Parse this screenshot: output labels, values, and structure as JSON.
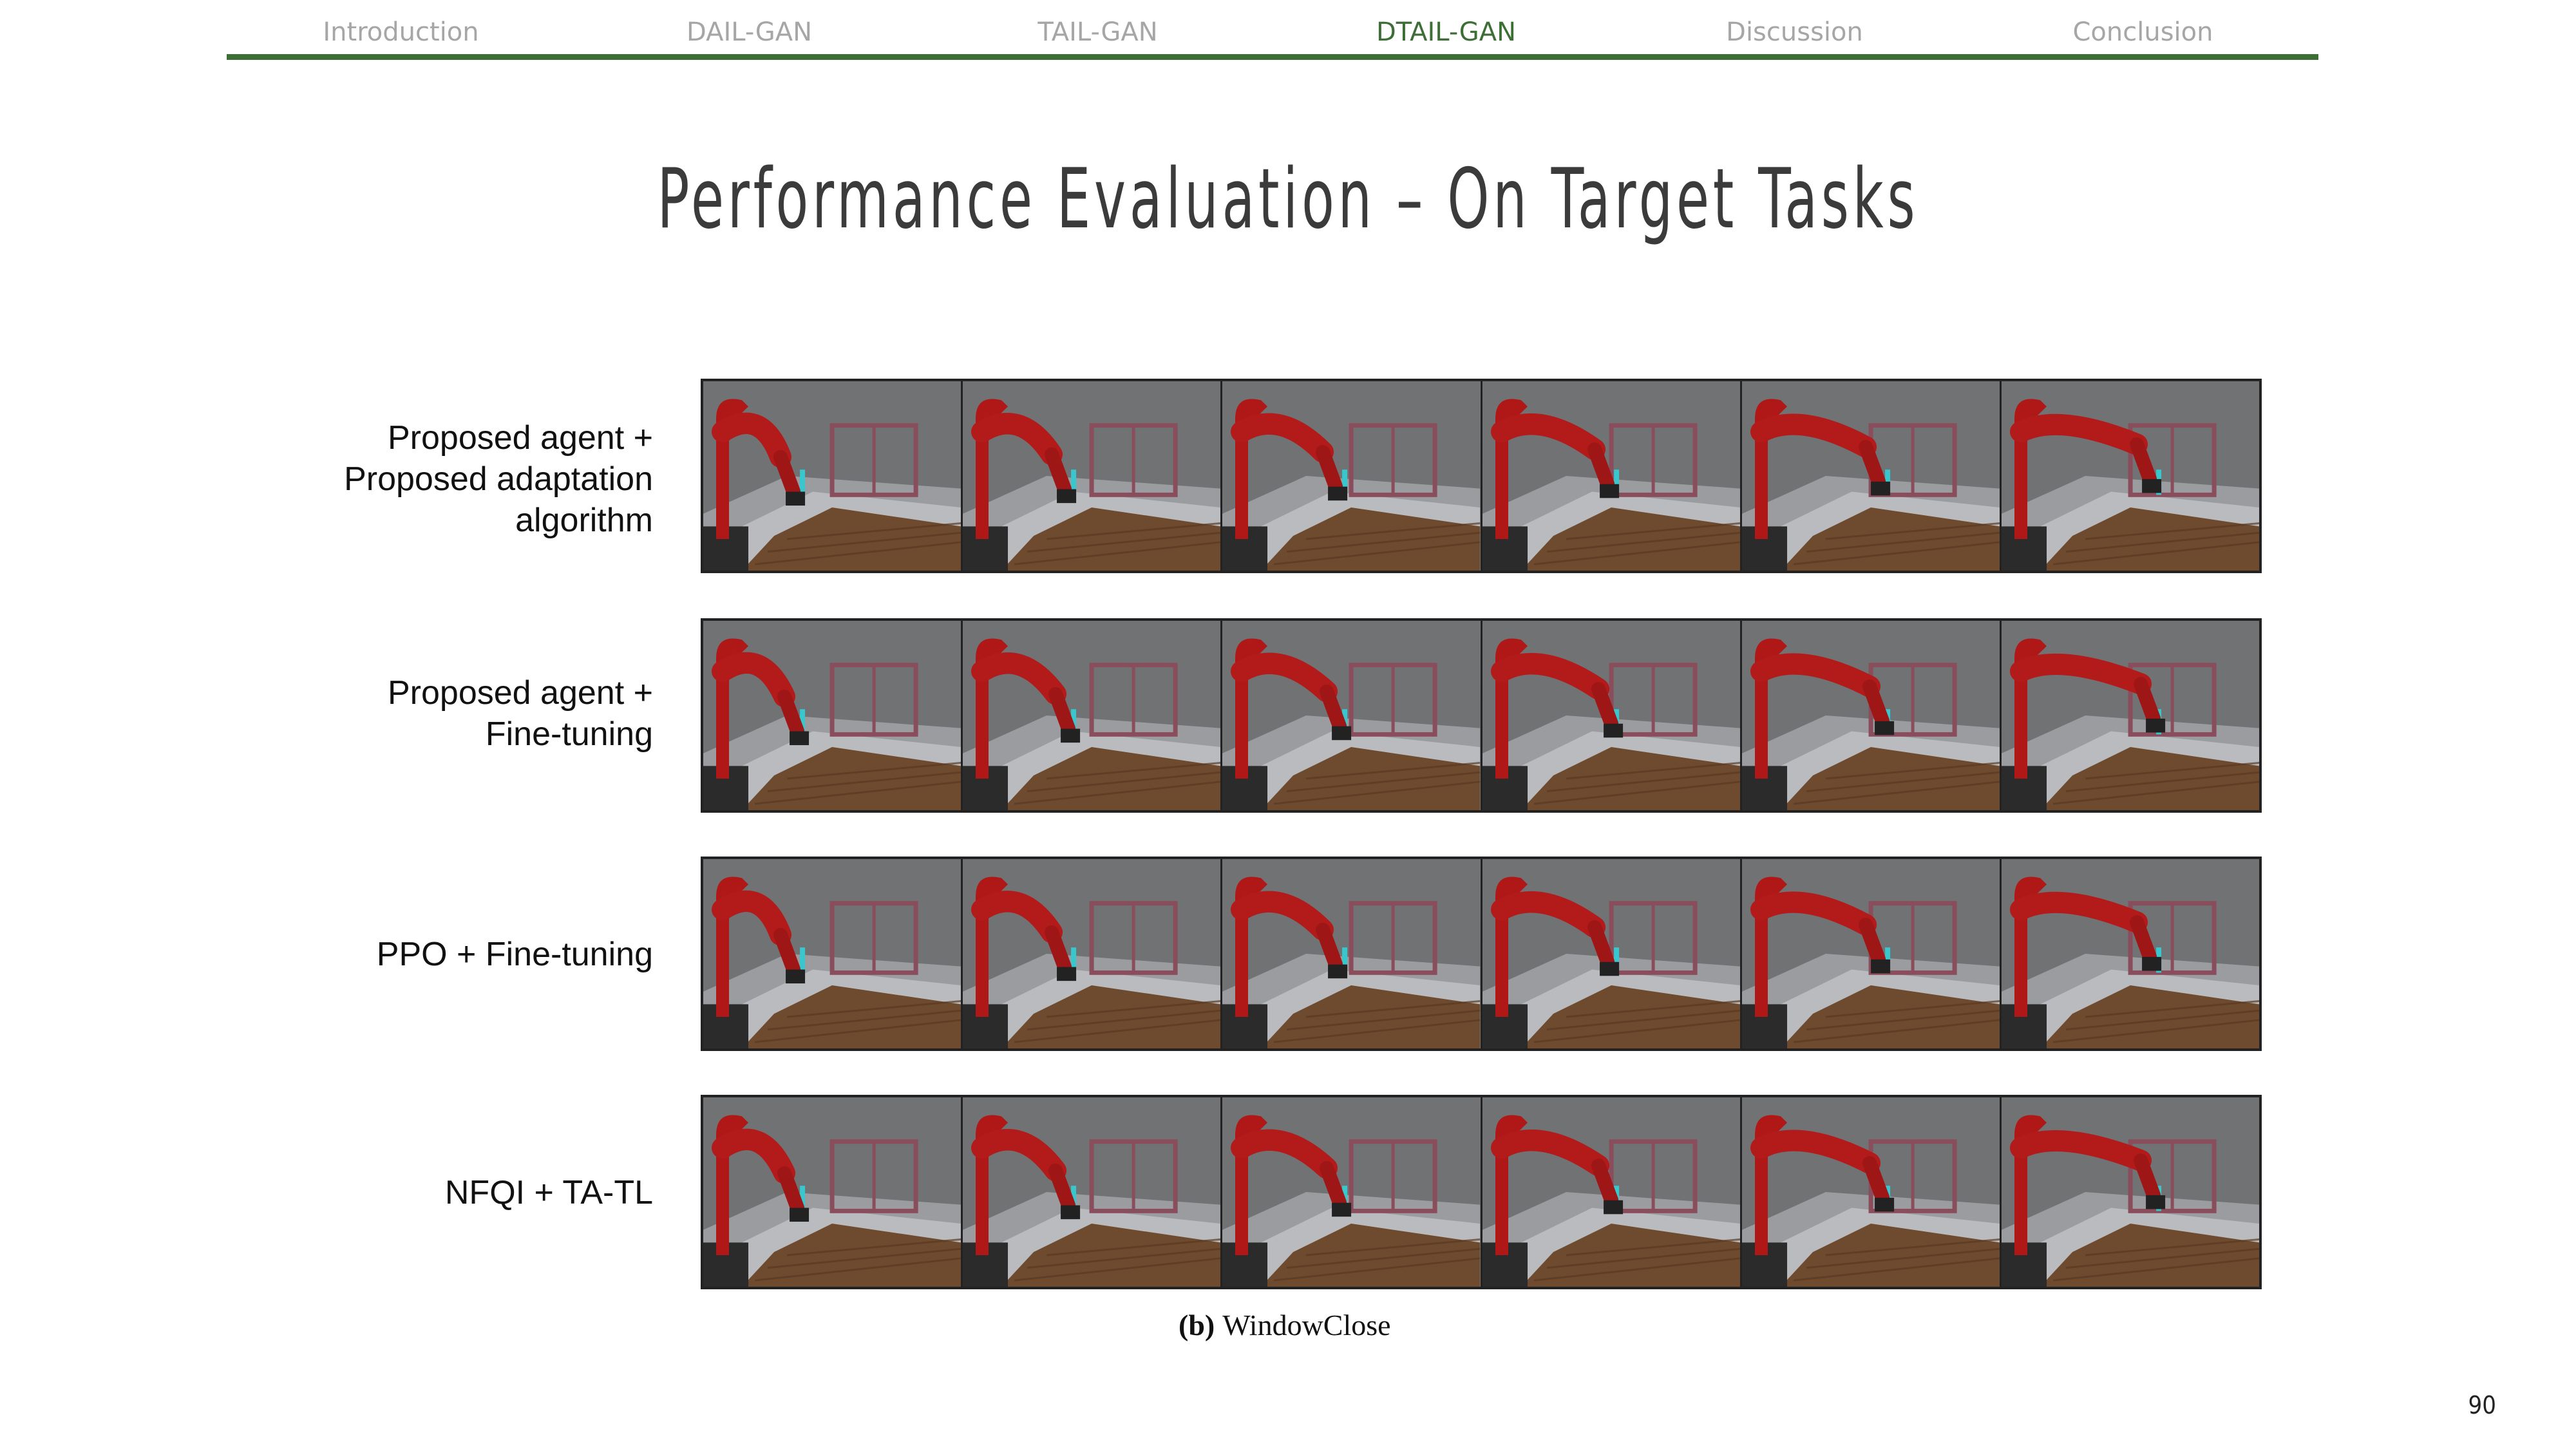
{
  "nav": {
    "items": [
      {
        "label": "Introduction"
      },
      {
        "label": "DAIL-GAN"
      },
      {
        "label": "TAIL-GAN"
      },
      {
        "label": "DTAIL-GAN",
        "active": true
      },
      {
        "label": "Discussion"
      },
      {
        "label": "Conclusion"
      }
    ],
    "accent_color": "#3c6e36",
    "inactive_color": "#a6a6a6"
  },
  "title": "Performance Evaluation – On Target Tasks",
  "rows": [
    {
      "label_lines": [
        "Proposed agent +",
        "Proposed adaptation",
        "algorithm"
      ],
      "frames": 6
    },
    {
      "label_lines": [
        "Proposed agent +",
        "Fine-tuning"
      ],
      "frames": 6
    },
    {
      "label_lines": [
        "PPO + Fine-tuning"
      ],
      "frames": 6
    },
    {
      "label_lines": [
        "NFQI + TA-TL"
      ],
      "frames": 6
    }
  ],
  "caption": {
    "prefix": "(b)",
    "text": "WindowClose"
  },
  "page_number": "90",
  "frame_content": "red-robot-arm-closing-window-image"
}
